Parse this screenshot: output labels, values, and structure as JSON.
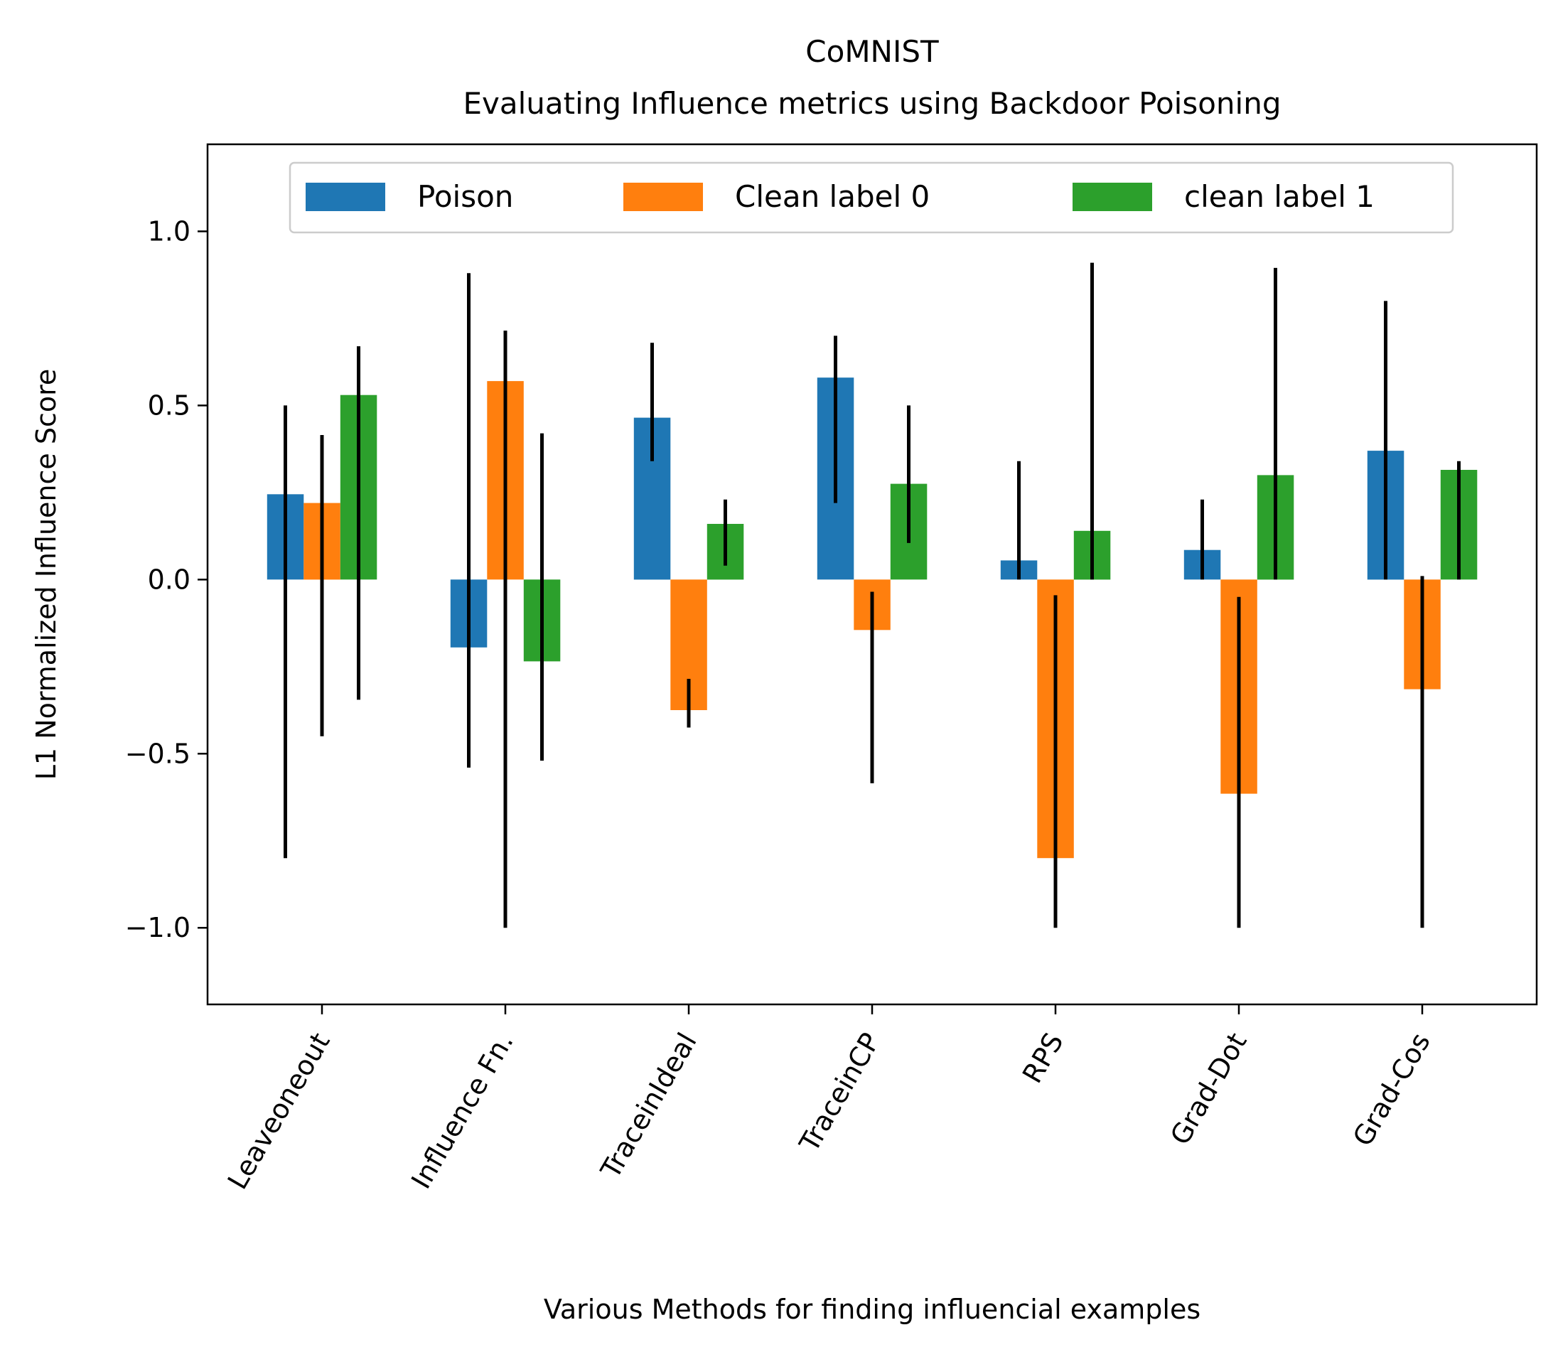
{
  "chart_data": {
    "type": "bar",
    "title_line1": "CoMNIST",
    "title_line2": "Evaluating Influence metrics using Backdoor Poisoning",
    "xlabel": "Various Methods for finding influencial examples",
    "ylabel": "L1 Normalized Influence Score",
    "ylim": [
      -1.22,
      1.25
    ],
    "yticks": [
      1.0,
      0.5,
      0.0,
      -0.5,
      -1.0
    ],
    "ytick_labels": [
      "1.0",
      "0.5",
      "0.0",
      "−0.5",
      "−1.0"
    ],
    "grid": false,
    "legend_position": "top-center",
    "categories": [
      "Leaveoneout",
      "Influence Fn.",
      "TraceinIdeal",
      "TraceinCP",
      "RPS",
      "Grad-Dot",
      "Grad-Cos"
    ],
    "series": [
      {
        "name": "Poison",
        "color": "#1f77b4",
        "values": [
          0.245,
          -0.195,
          0.465,
          0.58,
          0.055,
          0.085,
          0.37
        ],
        "error_low": [
          -0.8,
          -0.54,
          0.34,
          0.22,
          0.0,
          0.0,
          0.0
        ],
        "error_high": [
          0.5,
          0.88,
          0.68,
          0.7,
          0.34,
          0.23,
          0.8
        ]
      },
      {
        "name": "Clean label 0",
        "color": "#ff7f0e",
        "values": [
          0.22,
          0.57,
          -0.375,
          -0.145,
          -0.8,
          -0.615,
          -0.315
        ],
        "error_low": [
          -0.45,
          -1.0,
          -0.425,
          -0.585,
          -1.0,
          -1.0,
          -1.0
        ],
        "error_high": [
          0.415,
          0.715,
          -0.285,
          -0.035,
          -0.045,
          -0.05,
          0.01
        ]
      },
      {
        "name": "clean label 1",
        "color": "#2ca02c",
        "values": [
          0.53,
          -0.235,
          0.16,
          0.275,
          0.14,
          0.3,
          0.315
        ],
        "error_low": [
          -0.345,
          -0.52,
          0.04,
          0.105,
          0.0,
          0.0,
          0.0
        ],
        "error_high": [
          0.67,
          0.42,
          0.23,
          0.5,
          0.91,
          0.895,
          0.34
        ]
      }
    ]
  }
}
